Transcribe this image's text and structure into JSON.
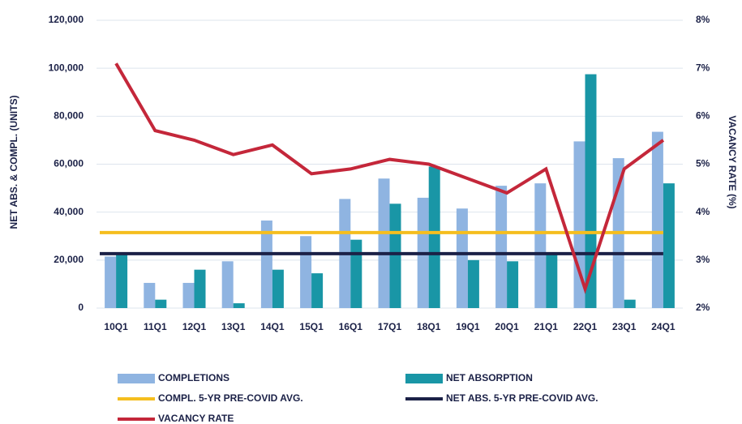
{
  "chart_data": {
    "type": "bar",
    "y_label": "NET ABS. & COMPL. (UNITS)",
    "y2_label": "VACANCY RATE (%)",
    "categories": [
      "10Q1",
      "11Q1",
      "12Q1",
      "13Q1",
      "14Q1",
      "15Q1",
      "16Q1",
      "17Q1",
      "18Q1",
      "19Q1",
      "20Q1",
      "21Q1",
      "22Q1",
      "23Q1",
      "24Q1"
    ],
    "ylim": [
      0,
      120000
    ],
    "yticks": [
      0,
      {
        "value": 20000,
        "label": "20,000"
      },
      {
        "value": 40000,
        "label": "40,000"
      },
      {
        "value": 60000,
        "label": "60,000"
      },
      {
        "value": 80000,
        "label": "80,000"
      },
      {
        "value": 100000,
        "label": "100,000"
      },
      {
        "value": 120000,
        "label": "120,000"
      }
    ],
    "y2lim": [
      2,
      8
    ],
    "y2ticks": [
      {
        "value": 2,
        "label": "2%"
      },
      {
        "value": 3,
        "label": "3%"
      },
      {
        "value": 4,
        "label": "4%"
      },
      {
        "value": 5,
        "label": "5%"
      },
      {
        "value": 6,
        "label": "6%"
      },
      {
        "value": 7,
        "label": "7%"
      },
      {
        "value": 8,
        "label": "8%"
      }
    ],
    "grid": true,
    "series": [
      {
        "name": "COMPLETIONS",
        "type": "bar",
        "color": "#8fb4e1",
        "values": [
          21500,
          10500,
          10500,
          19500,
          36500,
          30000,
          45500,
          54000,
          46000,
          41500,
          51000,
          52000,
          69500,
          62500,
          73500
        ]
      },
      {
        "name": "NET ABSORPTION",
        "type": "bar",
        "color": "#1996a6",
        "values": [
          22500,
          3500,
          16000,
          2000,
          16000,
          14500,
          28500,
          43500,
          59000,
          20000,
          19500,
          23000,
          97500,
          3500,
          52000
        ]
      },
      {
        "name": "COMPL. 5-YR PRE-COVID AVG.",
        "type": "hline",
        "color": "#f5be1e",
        "value": 31500
      },
      {
        "name": "NET ABS. 5-YR PRE-COVID AVG.",
        "type": "hline",
        "color": "#1b2147",
        "value": 22700
      },
      {
        "name": "VACANCY RATE",
        "type": "line",
        "axis": "y2",
        "color": "#c4273a",
        "values": [
          7.1,
          5.7,
          5.5,
          5.2,
          5.4,
          4.8,
          4.9,
          5.1,
          5.0,
          4.7,
          4.4,
          4.9,
          2.4,
          4.9,
          5.5
        ]
      }
    ]
  }
}
